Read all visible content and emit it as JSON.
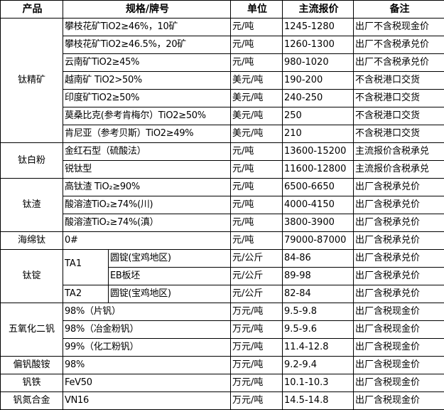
{
  "header": {
    "product": "产品",
    "spec": "规格/牌号",
    "unit": "单位",
    "price": "主流报价",
    "note": "备注"
  },
  "groups": [
    {
      "product": "钛精矿",
      "rows": [
        {
          "spec": "攀枝花矿TiO2≥46%，10矿",
          "unit": "元/吨",
          "price": "1245-1280",
          "note": "出厂不含税现金价"
        },
        {
          "spec": "攀枝花矿TiO2≥46.5%，20矿",
          "unit": "元/吨",
          "price": "1260-1300",
          "note": "出厂不含税承兑价"
        },
        {
          "spec": "云南矿TiO2≥45%",
          "unit": "元/吨",
          "price": "980-1020",
          "note": "出厂不含税承兑价"
        },
        {
          "spec": "越南矿 TiO2>50%",
          "unit": "美元/吨",
          "price": "190-200",
          "note": "不含税港口交货"
        },
        {
          "spec": "印度矿TiO2≥50%",
          "unit": "美元/吨",
          "price": "240-250",
          "note": "不含税港口交货"
        },
        {
          "spec": "莫桑比克(参考肯梅尔）TiO2≥50%",
          "unit": "美元/吨",
          "price": "250",
          "note": "不含税港口交货"
        },
        {
          "spec": "肯尼亚（参考贝斯）TiO2≥49%",
          "unit": "美元/吨",
          "price": "210",
          "note": "不含税港口交货"
        }
      ]
    },
    {
      "product": "钛白粉",
      "rows": [
        {
          "spec": "金红石型（硫酸法）",
          "unit": "元/吨",
          "price": "13600-15200",
          "note": "主流报价含税承兑"
        },
        {
          "spec": "锐钛型",
          "unit": "元/吨",
          "price": "11600-12800",
          "note": "主流报价含税承兑"
        }
      ]
    },
    {
      "product": "钛渣",
      "rows": [
        {
          "spec": "高钛渣 TiO₂≥90%",
          "unit": "元/吨",
          "price": "6500-6650",
          "note": "出厂含税承兑价"
        },
        {
          "spec": "酸溶渣TiO₂≥74%(川)",
          "unit": "元/吨",
          "price": "4000-4150",
          "note": "出厂含税承兑价"
        },
        {
          "spec": "酸溶渣TiO₂≥74%(滇）",
          "unit": "元/吨",
          "price": "3800-3900",
          "note": "出厂含税承兑价"
        }
      ]
    },
    {
      "product": "海绵钛",
      "rows": [
        {
          "spec": "0#",
          "unit": "元/吨",
          "price": "79000-87000",
          "note": "出厂含税承兑价"
        }
      ]
    },
    {
      "product": "钛锭",
      "subgroups": [
        {
          "grade": "TA1",
          "rows": [
            {
              "spec": "圆锭(宝鸡地区)",
              "unit": "元/公斤",
              "price": "84-86",
              "note": "出厂含税承兑价"
            },
            {
              "spec": "EB板坯",
              "unit": "元/公斤",
              "price": "89-98",
              "note": "出厂含税承兑价"
            }
          ]
        },
        {
          "grade": "TA2",
          "rows": [
            {
              "spec": "圆锭(宝鸡地区)",
              "unit": "元/公斤",
              "price": "82-84",
              "note": "出厂含税承兑价"
            }
          ]
        }
      ]
    },
    {
      "product": "五氧化二钒",
      "rows": [
        {
          "spec": "98%（片钒）",
          "unit": "万元/吨",
          "price": "9.5-9.8",
          "note": "出厂含税现金价"
        },
        {
          "spec": "98%（冶金粉钒）",
          "unit": "万元/吨",
          "price": "9.5-9.6",
          "note": "出厂含税现金价"
        },
        {
          "spec": "99%（化工粉钒）",
          "unit": "万元/吨",
          "price": "11.4-12.8",
          "note": "出厂含税现金价"
        }
      ]
    },
    {
      "product": "偏钒酸铵",
      "rows": [
        {
          "spec": "98%",
          "unit": "万元/吨",
          "price": "9.2-9.4",
          "note": "出厂含税现金价"
        }
      ]
    },
    {
      "product": "钒铁",
      "rows": [
        {
          "spec": "FeV50",
          "unit": "万元/吨",
          "price": "10.1-10.3",
          "note": "出厂含税现金价"
        }
      ]
    },
    {
      "product": "钒氮合金",
      "rows": [
        {
          "spec": "VN16",
          "unit": "万元/吨",
          "price": "14.5-14.8",
          "note": "出厂含税现金价"
        }
      ]
    }
  ]
}
